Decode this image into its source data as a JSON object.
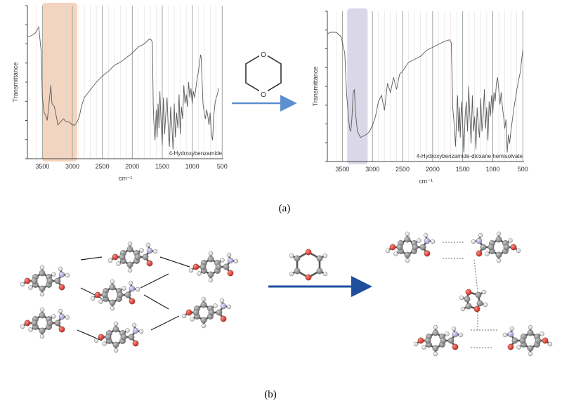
{
  "panel_a_label": "(a)",
  "panel_b_label": "(b)",
  "colors": {
    "spectrum_line": "#5b5b5b",
    "grid": "#d8d8d8",
    "grid_major": "#9aa4a4",
    "highlight_left": "#f3cdb3",
    "highlight_right": "#d5d0e8",
    "arrow_a": "#5b8fcf",
    "arrow_b": "#1f4e9c",
    "carbon": "#8a8a8a",
    "oxygen": "#e0342a",
    "nitrogen": "#a8a6d6",
    "hydrogen": "#e9e9e9",
    "bond": "#555555",
    "hbond": "#8c8c8c"
  },
  "chart_data": [
    {
      "type": "line",
      "title": "",
      "xlabel": "cm⁻¹",
      "ylabel": "Transmittance",
      "annotation": "4-Hydroxybenzamide",
      "xlim": [
        3750,
        480
      ],
      "x_reversed": true,
      "xticks": [
        3500,
        3000,
        2500,
        2000,
        1500,
        1000,
        500
      ],
      "highlight_range": [
        3500,
        2920
      ],
      "series": [
        {
          "x": [
            3750,
            3700,
            3620,
            3560,
            3520,
            3500,
            3470,
            3440,
            3420,
            3400,
            3380,
            3360,
            3340,
            3300,
            3270,
            3240,
            3200,
            3150,
            3100,
            3050,
            3000,
            2960,
            2920,
            2880,
            2850,
            2800,
            2700,
            2600,
            2500,
            2400,
            2300,
            2200,
            2100,
            2000,
            1900,
            1800,
            1720,
            1690,
            1665,
            1650,
            1640,
            1620,
            1600,
            1585,
            1570,
            1555,
            1540,
            1520,
            1500,
            1480,
            1460,
            1440,
            1420,
            1400,
            1380,
            1360,
            1340,
            1320,
            1300,
            1280,
            1260,
            1240,
            1220,
            1200,
            1180,
            1160,
            1140,
            1120,
            1100,
            1080,
            1060,
            1040,
            1020,
            1000,
            980,
            960,
            940,
            920,
            900,
            880,
            860,
            850,
            840,
            820,
            800,
            780,
            760,
            740,
            720,
            700,
            680,
            660,
            640,
            620,
            600,
            580,
            560
          ],
          "y": [
            80,
            80,
            82,
            86,
            70,
            40,
            30,
            28,
            25,
            32,
            40,
            48,
            36,
            34,
            28,
            22,
            24,
            26,
            24,
            24,
            22,
            22,
            24,
            28,
            34,
            40,
            45,
            50,
            54,
            57,
            61,
            63,
            66,
            69,
            73,
            75,
            78,
            78,
            76,
            34,
            24,
            12,
            32,
            14,
            36,
            20,
            44,
            24,
            9,
            40,
            16,
            30,
            40,
            20,
            8,
            34,
            22,
            6,
            36,
            14,
            30,
            20,
            42,
            16,
            34,
            26,
            48,
            36,
            42,
            34,
            50,
            40,
            46,
            36,
            44,
            40,
            46,
            52,
            56,
            62,
            68,
            66,
            55,
            36,
            30,
            26,
            32,
            28,
            22,
            30,
            16,
            12,
            28,
            36,
            40,
            42,
            46
          ]
        }
      ]
    },
    {
      "type": "line",
      "title": "",
      "xlabel": "cm⁻¹",
      "ylabel": "Transmittance",
      "annotation": "4-Hydroxybenzamide-dioxane hemisolvate",
      "xlim": [
        3750,
        480
      ],
      "x_reversed": true,
      "xticks": [
        3500,
        3000,
        2500,
        2000,
        1500,
        1000,
        500
      ],
      "highlight_range": [
        3420,
        3080
      ],
      "series": [
        {
          "x": [
            3750,
            3700,
            3600,
            3520,
            3460,
            3430,
            3400,
            3380,
            3360,
            3340,
            3320,
            3300,
            3280,
            3250,
            3200,
            3150,
            3100,
            3050,
            3000,
            2950,
            2900,
            2850,
            2800,
            2750,
            2700,
            2650,
            2600,
            2550,
            2500,
            2400,
            2300,
            2200,
            2100,
            2000,
            1900,
            1800,
            1720,
            1690,
            1665,
            1640,
            1620,
            1600,
            1585,
            1570,
            1555,
            1540,
            1520,
            1500,
            1480,
            1460,
            1440,
            1420,
            1400,
            1380,
            1360,
            1340,
            1320,
            1300,
            1280,
            1260,
            1240,
            1220,
            1200,
            1180,
            1160,
            1140,
            1120,
            1100,
            1080,
            1060,
            1040,
            1020,
            1000,
            980,
            960,
            940,
            920,
            900,
            880,
            860,
            840,
            820,
            800,
            780,
            760,
            740,
            720,
            700,
            680,
            660,
            640,
            620,
            600,
            580,
            560,
            540,
            520,
            500
          ],
          "y": [
            85,
            86,
            86,
            83,
            72,
            45,
            30,
            22,
            20,
            30,
            46,
            48,
            32,
            20,
            16,
            17,
            18,
            20,
            24,
            30,
            40,
            44,
            34,
            52,
            46,
            56,
            48,
            58,
            60,
            66,
            68,
            70,
            74,
            76,
            78,
            80,
            81,
            79,
            36,
            24,
            10,
            30,
            44,
            20,
            36,
            16,
            40,
            24,
            6,
            30,
            40,
            20,
            50,
            30,
            12,
            44,
            20,
            30,
            8,
            36,
            24,
            16,
            42,
            20,
            30,
            48,
            22,
            36,
            14,
            40,
            30,
            44,
            32,
            46,
            40,
            52,
            56,
            48,
            38,
            46,
            36,
            30,
            22,
            28,
            6,
            18,
            12,
            20,
            26,
            32,
            38,
            42,
            48,
            52,
            56,
            60,
            68,
            74
          ]
        }
      ]
    }
  ]
}
